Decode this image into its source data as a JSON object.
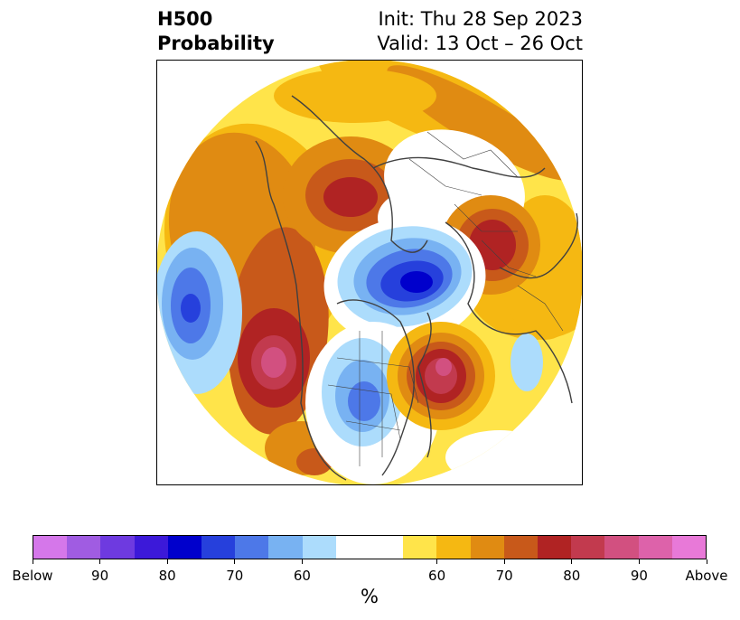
{
  "title": {
    "line1": "H500",
    "line2": "Probability"
  },
  "subtitle": {
    "init": "Init: Thu 28 Sep 2023",
    "valid": "Valid: 13 Oct – 26 Oct"
  },
  "colorbar": {
    "colors": [
      "#d577ea",
      "#a05ce2",
      "#6e3ae0",
      "#3c19d9",
      "#0000cc",
      "#2640dc",
      "#4d78e8",
      "#78b2f2",
      "#acdcfc",
      "#ffffff",
      "#ffffff",
      "#ffe44a",
      "#f5b812",
      "#e08b12",
      "#c8591a",
      "#b02323",
      "#c23a4e",
      "#d25080",
      "#dd62aa",
      "#e879d8"
    ],
    "tick_labels": [
      "Below",
      "90",
      "80",
      "70",
      "60",
      "60",
      "70",
      "80",
      "90",
      "Above"
    ],
    "label": "%"
  }
}
